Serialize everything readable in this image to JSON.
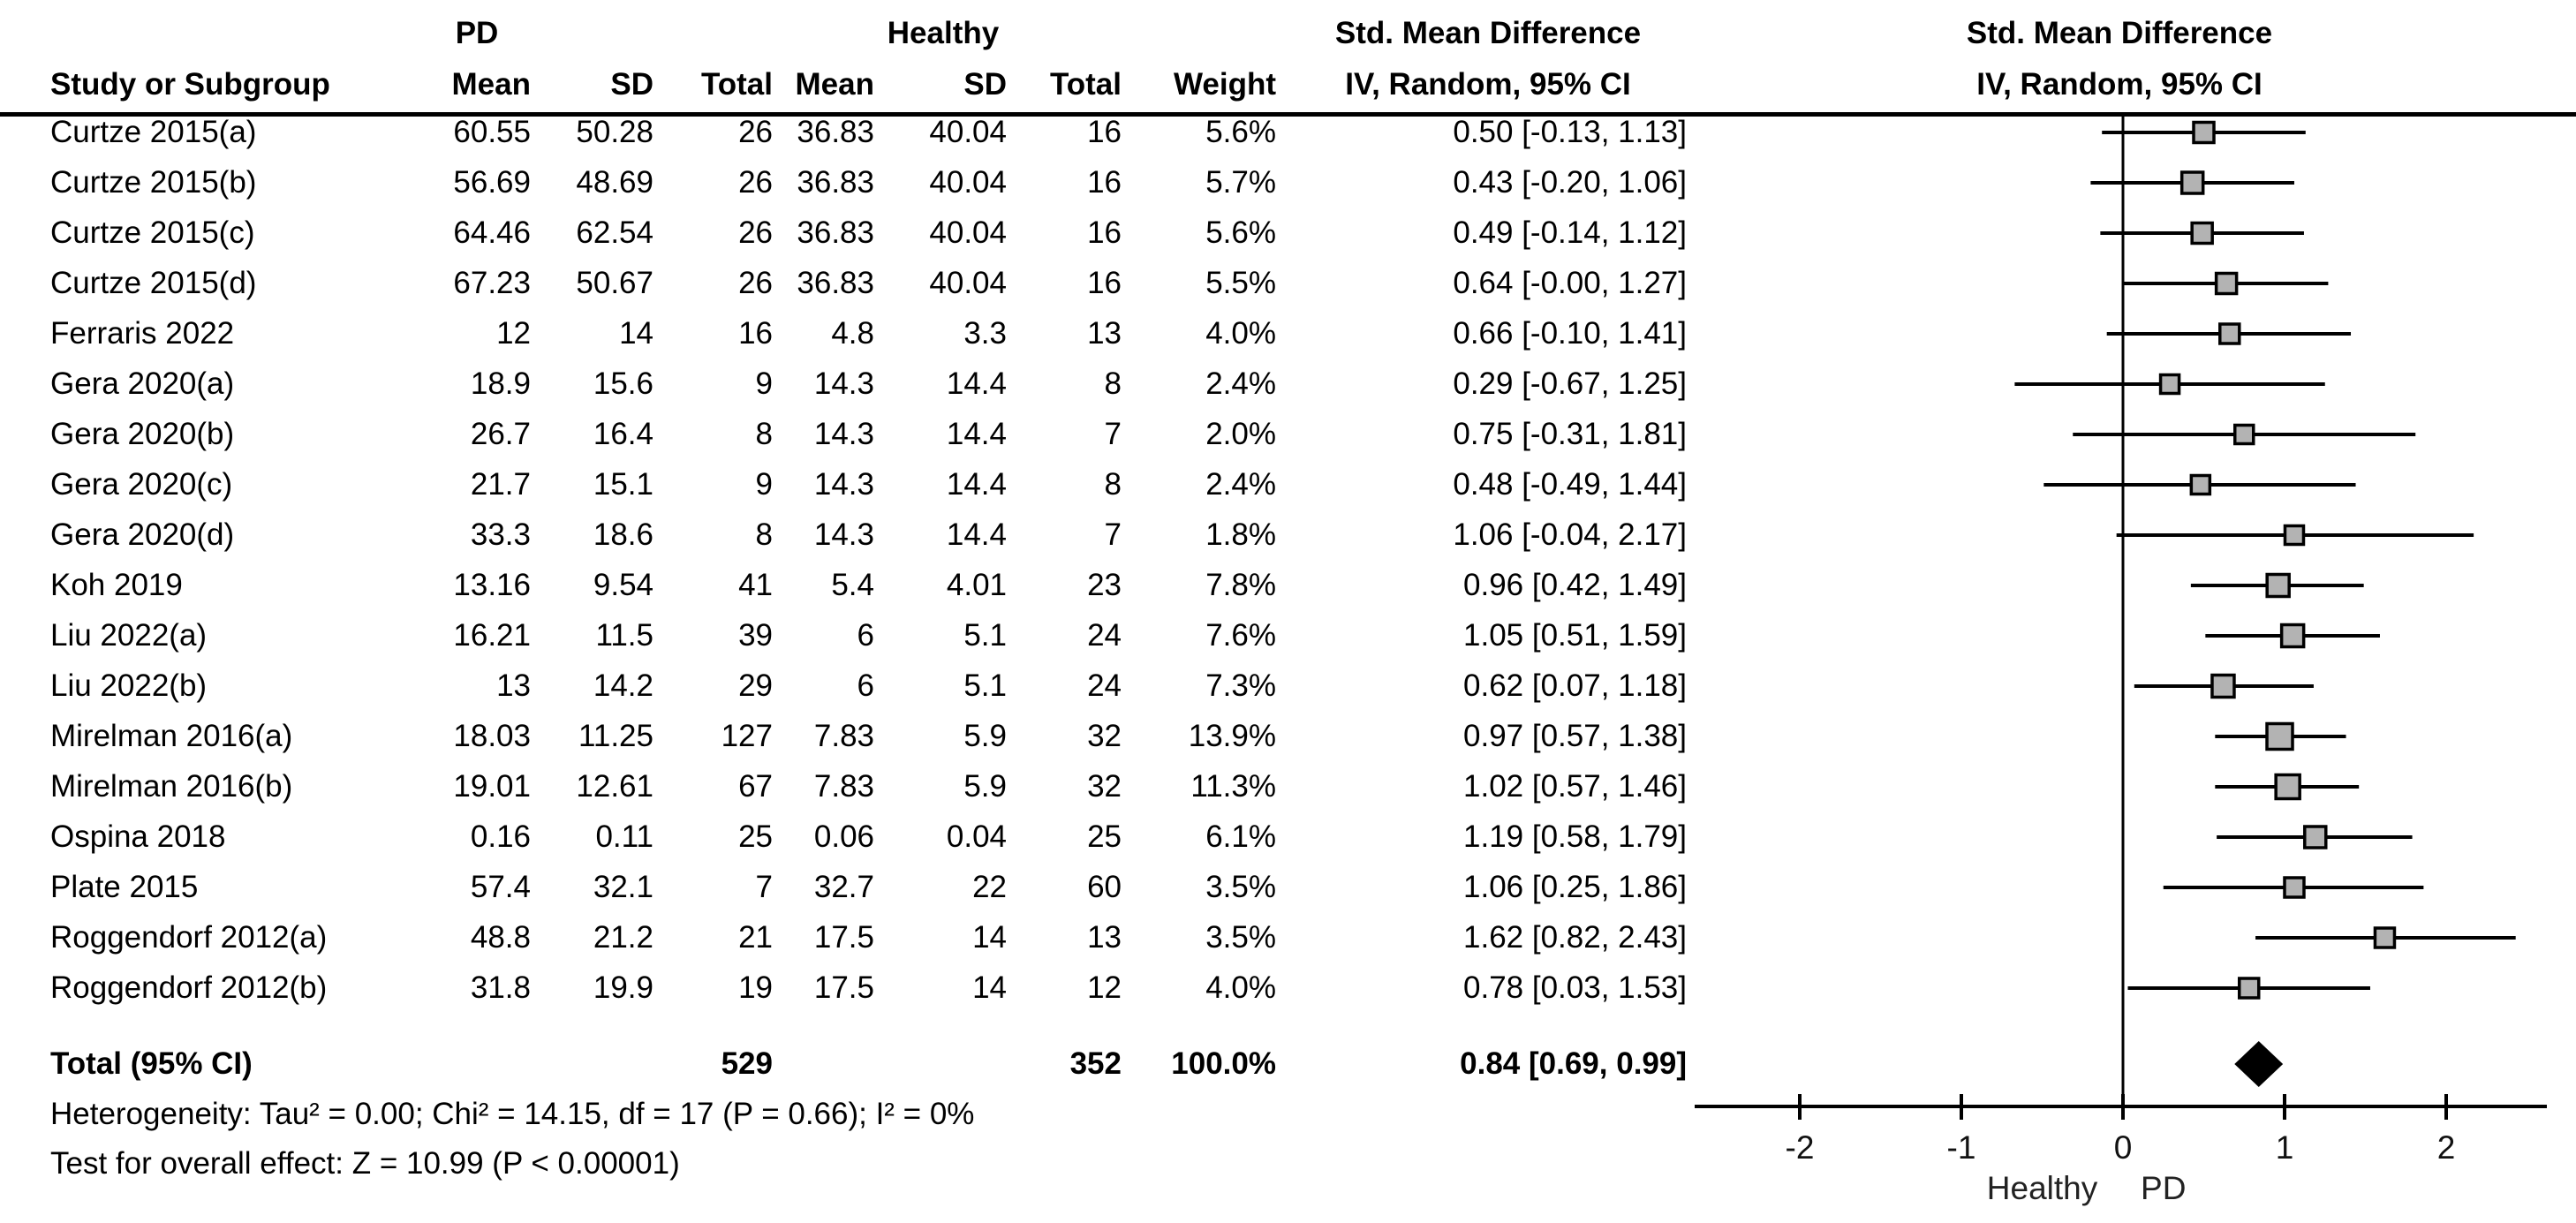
{
  "header": {
    "study_col": "Study or Subgroup",
    "group_pd": "PD",
    "group_healthy": "Healthy",
    "mean": "Mean",
    "sd": "SD",
    "total": "Total",
    "weight": "Weight",
    "smd_title": "Std. Mean Difference",
    "smd_subtitle": "IV, Random, 95% CI"
  },
  "totals": {
    "label": "Total (95% CI)",
    "pd_total": "529",
    "healthy_total": "352",
    "weight": "100.0%",
    "ci_text": "0.84 [0.69, 0.99]"
  },
  "footer": {
    "heterogeneity": "Heterogeneity: Tau² = 0.00; Chi² = 14.15, df = 17 (P = 0.66); I² = 0%",
    "overall_effect": "Test for overall effect: Z = 10.99 (P < 0.00001)"
  },
  "chart_data": {
    "type": "forest",
    "title": "Std. Mean Difference",
    "model": "IV, Random, 95% CI",
    "axis": {
      "ticks": [
        -2,
        -1,
        0,
        1,
        2
      ],
      "min": -2.65,
      "max": 2.62,
      "left_label": "Healthy",
      "right_label": "PD"
    },
    "colors": {
      "square_fill": "#b3b3b3",
      "square_stroke": "#000000",
      "line": "#000000",
      "diamond": "#000000"
    },
    "studies": [
      {
        "study": "Curtze 2015(a)",
        "mean_pd": "60.55",
        "sd_pd": "50.28",
        "total_pd": "26",
        "mean_h": "36.83",
        "sd_h": "40.04",
        "total_h": "16",
        "weight": "5.6%",
        "ci_text": "0.50 [-0.13, 1.13]",
        "est": 0.5,
        "lo": -0.13,
        "hi": 1.13,
        "w": 5.6
      },
      {
        "study": "Curtze 2015(b)",
        "mean_pd": "56.69",
        "sd_pd": "48.69",
        "total_pd": "26",
        "mean_h": "36.83",
        "sd_h": "40.04",
        "total_h": "16",
        "weight": "5.7%",
        "ci_text": "0.43 [-0.20, 1.06]",
        "est": 0.43,
        "lo": -0.2,
        "hi": 1.06,
        "w": 5.7
      },
      {
        "study": "Curtze 2015(c)",
        "mean_pd": "64.46",
        "sd_pd": "62.54",
        "total_pd": "26",
        "mean_h": "36.83",
        "sd_h": "40.04",
        "total_h": "16",
        "weight": "5.6%",
        "ci_text": "0.49 [-0.14, 1.12]",
        "est": 0.49,
        "lo": -0.14,
        "hi": 1.12,
        "w": 5.6
      },
      {
        "study": "Curtze 2015(d)",
        "mean_pd": "67.23",
        "sd_pd": "50.67",
        "total_pd": "26",
        "mean_h": "36.83",
        "sd_h": "40.04",
        "total_h": "16",
        "weight": "5.5%",
        "ci_text": "0.64 [-0.00, 1.27]",
        "est": 0.64,
        "lo": 0.0,
        "hi": 1.27,
        "w": 5.5
      },
      {
        "study": "Ferraris 2022",
        "mean_pd": "12",
        "sd_pd": "14",
        "total_pd": "16",
        "mean_h": "4.8",
        "sd_h": "3.3",
        "total_h": "13",
        "weight": "4.0%",
        "ci_text": "0.66 [-0.10, 1.41]",
        "est": 0.66,
        "lo": -0.1,
        "hi": 1.41,
        "w": 4.0
      },
      {
        "study": "Gera 2020(a)",
        "mean_pd": "18.9",
        "sd_pd": "15.6",
        "total_pd": "9",
        "mean_h": "14.3",
        "sd_h": "14.4",
        "total_h": "8",
        "weight": "2.4%",
        "ci_text": "0.29 [-0.67, 1.25]",
        "est": 0.29,
        "lo": -0.67,
        "hi": 1.25,
        "w": 2.4
      },
      {
        "study": "Gera 2020(b)",
        "mean_pd": "26.7",
        "sd_pd": "16.4",
        "total_pd": "8",
        "mean_h": "14.3",
        "sd_h": "14.4",
        "total_h": "7",
        "weight": "2.0%",
        "ci_text": "0.75 [-0.31, 1.81]",
        "est": 0.75,
        "lo": -0.31,
        "hi": 1.81,
        "w": 2.0
      },
      {
        "study": "Gera 2020(c)",
        "mean_pd": "21.7",
        "sd_pd": "15.1",
        "total_pd": "9",
        "mean_h": "14.3",
        "sd_h": "14.4",
        "total_h": "8",
        "weight": "2.4%",
        "ci_text": "0.48 [-0.49, 1.44]",
        "est": 0.48,
        "lo": -0.49,
        "hi": 1.44,
        "w": 2.4
      },
      {
        "study": "Gera 2020(d)",
        "mean_pd": "33.3",
        "sd_pd": "18.6",
        "total_pd": "8",
        "mean_h": "14.3",
        "sd_h": "14.4",
        "total_h": "7",
        "weight": "1.8%",
        "ci_text": "1.06 [-0.04, 2.17]",
        "est": 1.06,
        "lo": -0.04,
        "hi": 2.17,
        "w": 1.8
      },
      {
        "study": "Koh 2019",
        "mean_pd": "13.16",
        "sd_pd": "9.54",
        "total_pd": "41",
        "mean_h": "5.4",
        "sd_h": "4.01",
        "total_h": "23",
        "weight": "7.8%",
        "ci_text": "0.96 [0.42, 1.49]",
        "est": 0.96,
        "lo": 0.42,
        "hi": 1.49,
        "w": 7.8
      },
      {
        "study": "Liu 2022(a)",
        "mean_pd": "16.21",
        "sd_pd": "11.5",
        "total_pd": "39",
        "mean_h": "6",
        "sd_h": "5.1",
        "total_h": "24",
        "weight": "7.6%",
        "ci_text": "1.05 [0.51, 1.59]",
        "est": 1.05,
        "lo": 0.51,
        "hi": 1.59,
        "w": 7.6
      },
      {
        "study": "Liu 2022(b)",
        "mean_pd": "13",
        "sd_pd": "14.2",
        "total_pd": "29",
        "mean_h": "6",
        "sd_h": "5.1",
        "total_h": "24",
        "weight": "7.3%",
        "ci_text": "0.62 [0.07, 1.18]",
        "est": 0.62,
        "lo": 0.07,
        "hi": 1.18,
        "w": 7.3
      },
      {
        "study": "Mirelman 2016(a)",
        "mean_pd": "18.03",
        "sd_pd": "11.25",
        "total_pd": "127",
        "mean_h": "7.83",
        "sd_h": "5.9",
        "total_h": "32",
        "weight": "13.9%",
        "ci_text": "0.97 [0.57, 1.38]",
        "est": 0.97,
        "lo": 0.57,
        "hi": 1.38,
        "w": 13.9
      },
      {
        "study": "Mirelman 2016(b)",
        "mean_pd": "19.01",
        "sd_pd": "12.61",
        "total_pd": "67",
        "mean_h": "7.83",
        "sd_h": "5.9",
        "total_h": "32",
        "weight": "11.3%",
        "ci_text": "1.02 [0.57, 1.46]",
        "est": 1.02,
        "lo": 0.57,
        "hi": 1.46,
        "w": 11.3
      },
      {
        "study": "Ospina 2018",
        "mean_pd": "0.16",
        "sd_pd": "0.11",
        "total_pd": "25",
        "mean_h": "0.06",
        "sd_h": "0.04",
        "total_h": "25",
        "weight": "6.1%",
        "ci_text": "1.19 [0.58, 1.79]",
        "est": 1.19,
        "lo": 0.58,
        "hi": 1.79,
        "w": 6.1
      },
      {
        "study": "Plate 2015",
        "mean_pd": "57.4",
        "sd_pd": "32.1",
        "total_pd": "7",
        "mean_h": "32.7",
        "sd_h": "22",
        "total_h": "60",
        "weight": "3.5%",
        "ci_text": "1.06 [0.25, 1.86]",
        "est": 1.06,
        "lo": 0.25,
        "hi": 1.86,
        "w": 3.5
      },
      {
        "study": "Roggendorf 2012(a)",
        "mean_pd": "48.8",
        "sd_pd": "21.2",
        "total_pd": "21",
        "mean_h": "17.5",
        "sd_h": "14",
        "total_h": "13",
        "weight": "3.5%",
        "ci_text": "1.62 [0.82, 2.43]",
        "est": 1.62,
        "lo": 0.82,
        "hi": 2.43,
        "w": 3.5
      },
      {
        "study": "Roggendorf 2012(b)",
        "mean_pd": "31.8",
        "sd_pd": "19.9",
        "total_pd": "19",
        "mean_h": "17.5",
        "sd_h": "14",
        "total_h": "12",
        "weight": "4.0%",
        "ci_text": "0.78 [0.03, 1.53]",
        "est": 0.78,
        "lo": 0.03,
        "hi": 1.53,
        "w": 4.0
      }
    ],
    "summary": {
      "est": 0.84,
      "lo": 0.69,
      "hi": 0.99
    }
  }
}
